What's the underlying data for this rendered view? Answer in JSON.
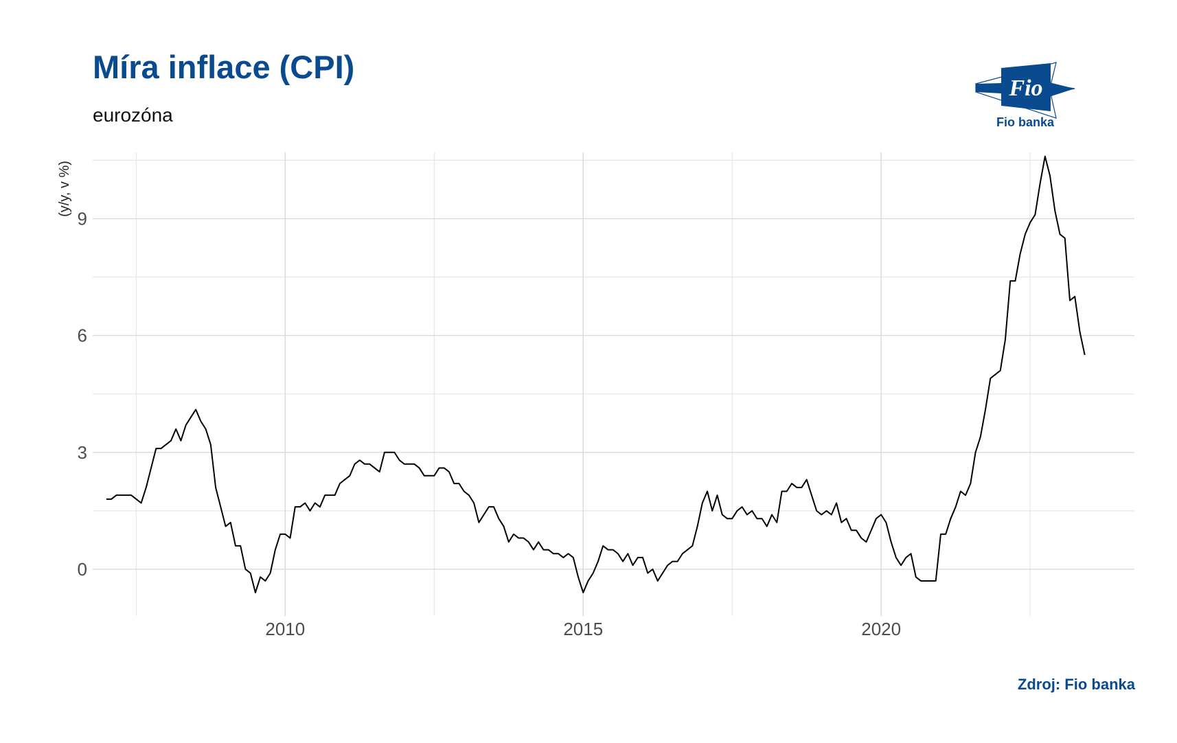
{
  "header": {
    "title": "Míra inflace (CPI)",
    "subtitle": "eurozóna"
  },
  "logo": {
    "mark_text": "Fio",
    "caption": "Fio banka",
    "colors": {
      "primary": "#0a4a8f",
      "light": "#ffffff"
    }
  },
  "footer": {
    "source": "Zdroj: Fio banka"
  },
  "chart_data": {
    "type": "line",
    "title": "Míra inflace (CPI)",
    "subtitle": "eurozóna",
    "xlabel": "",
    "ylabel": "(y/y, v %)",
    "xlim": [
      2006.77,
      2024.25
    ],
    "ylim": [
      -1.2,
      10.7
    ],
    "x_ticks": [
      2010,
      2015,
      2020
    ],
    "x_tick_labels": [
      "2010",
      "2015",
      "2020"
    ],
    "y_ticks": [
      0,
      3,
      6,
      9
    ],
    "y_tick_labels": [
      "0",
      "3",
      "6",
      "9"
    ],
    "grid": true,
    "legend": "none",
    "line_color": "#000000",
    "series": [
      {
        "start": "2007-01",
        "frequency": "monthly",
        "values": [
          1.8,
          1.8,
          1.9,
          1.9,
          1.9,
          1.9,
          1.8,
          1.7,
          2.1,
          2.6,
          3.1,
          3.1,
          3.2,
          3.3,
          3.6,
          3.3,
          3.7,
          3.9,
          4.1,
          3.8,
          3.6,
          3.2,
          2.1,
          1.6,
          1.1,
          1.2,
          0.6,
          0.6,
          0.0,
          -0.1,
          -0.6,
          -0.2,
          -0.3,
          -0.1,
          0.5,
          0.9,
          0.9,
          0.8,
          1.6,
          1.6,
          1.7,
          1.5,
          1.7,
          1.6,
          1.9,
          1.9,
          1.9,
          2.2,
          2.3,
          2.4,
          2.7,
          2.8,
          2.7,
          2.7,
          2.6,
          2.5,
          3.0,
          3.0,
          3.0,
          2.8,
          2.7,
          2.7,
          2.7,
          2.6,
          2.4,
          2.4,
          2.4,
          2.6,
          2.6,
          2.5,
          2.2,
          2.2,
          2.0,
          1.9,
          1.7,
          1.2,
          1.4,
          1.6,
          1.6,
          1.3,
          1.1,
          0.7,
          0.9,
          0.8,
          0.8,
          0.7,
          0.5,
          0.7,
          0.5,
          0.5,
          0.4,
          0.4,
          0.3,
          0.4,
          0.3,
          -0.2,
          -0.6,
          -0.3,
          -0.1,
          0.2,
          0.6,
          0.5,
          0.5,
          0.4,
          0.2,
          0.4,
          0.1,
          0.3,
          0.3,
          -0.1,
          0.0,
          -0.3,
          -0.1,
          0.1,
          0.2,
          0.2,
          0.4,
          0.5,
          0.6,
          1.1,
          1.7,
          2.0,
          1.5,
          1.9,
          1.4,
          1.3,
          1.3,
          1.5,
          1.6,
          1.4,
          1.5,
          1.3,
          1.3,
          1.1,
          1.4,
          1.2,
          2.0,
          2.0,
          2.2,
          2.1,
          2.1,
          2.3,
          1.9,
          1.5,
          1.4,
          1.5,
          1.4,
          1.7,
          1.2,
          1.3,
          1.0,
          1.0,
          0.8,
          0.7,
          1.0,
          1.3,
          1.4,
          1.2,
          0.7,
          0.3,
          0.1,
          0.3,
          0.4,
          -0.2,
          -0.3,
          -0.3,
          -0.3,
          -0.3,
          0.9,
          0.9,
          1.3,
          1.6,
          2.0,
          1.9,
          2.2,
          3.0,
          3.4,
          4.1,
          4.9,
          5.0,
          5.1,
          5.9,
          7.4,
          7.4,
          8.1,
          8.6,
          8.9,
          9.1,
          9.9,
          10.6,
          10.1,
          9.2,
          8.6,
          8.5,
          6.9,
          7.0,
          6.1,
          5.5
        ]
      }
    ]
  }
}
